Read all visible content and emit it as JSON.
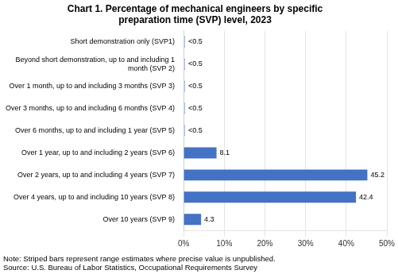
{
  "chart_data": {
    "type": "bar",
    "orientation": "horizontal",
    "title": "Chart 1. Percentage of mechanical engineers by specific\npreparation time (SVP) level, 2023",
    "annotations": [
      "Note: Striped bars represent range estimates where precise value is unpublished.\nSource: U.S. Bureau of Labor Statistics, Occupational Requirements Survey"
    ],
    "categories": [
      "Short demonstration only (SVP1)",
      "Beyond short demonstration, up to and including 1\nmonth (SVP 2)",
      "Over 1 month, up to and including 3 months (SVP 3)",
      "Over 3 months, up to and including 6 months (SVP 4)",
      "Over 6 months, up to and including 1 year (SVP 5)",
      "Over 1 year, up to and including 2 years (SVP 6)",
      "Over 2 years, up to and including 4 years (SVP 7)",
      "Over 4 years, up to and including 10 years (SVP 8)",
      "Over 10 years (SVP 9)"
    ],
    "series": [
      {
        "color": "#4472C4",
        "line_style": "hatched",
        "values": [
          0.35,
          0.35,
          0.35,
          0.35,
          0.35,
          null,
          null,
          null,
          null
        ],
        "value_labels": [
          "<0.5",
          "<0.5",
          "<0.5",
          "<0.5",
          "<0.5",
          null,
          null,
          null,
          null
        ]
      },
      {
        "color": "#4472C4",
        "line_style": "solid",
        "values": [
          null,
          null,
          null,
          null,
          null,
          8.1,
          45.2,
          42.4,
          4.3
        ]
      }
    ],
    "xlim": [
      0,
      50
    ],
    "xticks": [
      {
        "value": 0,
        "label": "0%"
      },
      {
        "value": 10,
        "label": "10%"
      },
      {
        "value": 20,
        "label": "20%"
      },
      {
        "value": 30,
        "label": "30%"
      },
      {
        "value": 40,
        "label": "40%"
      },
      {
        "value": 50,
        "label": "50%"
      }
    ],
    "grid": true,
    "data_labels": true
  }
}
